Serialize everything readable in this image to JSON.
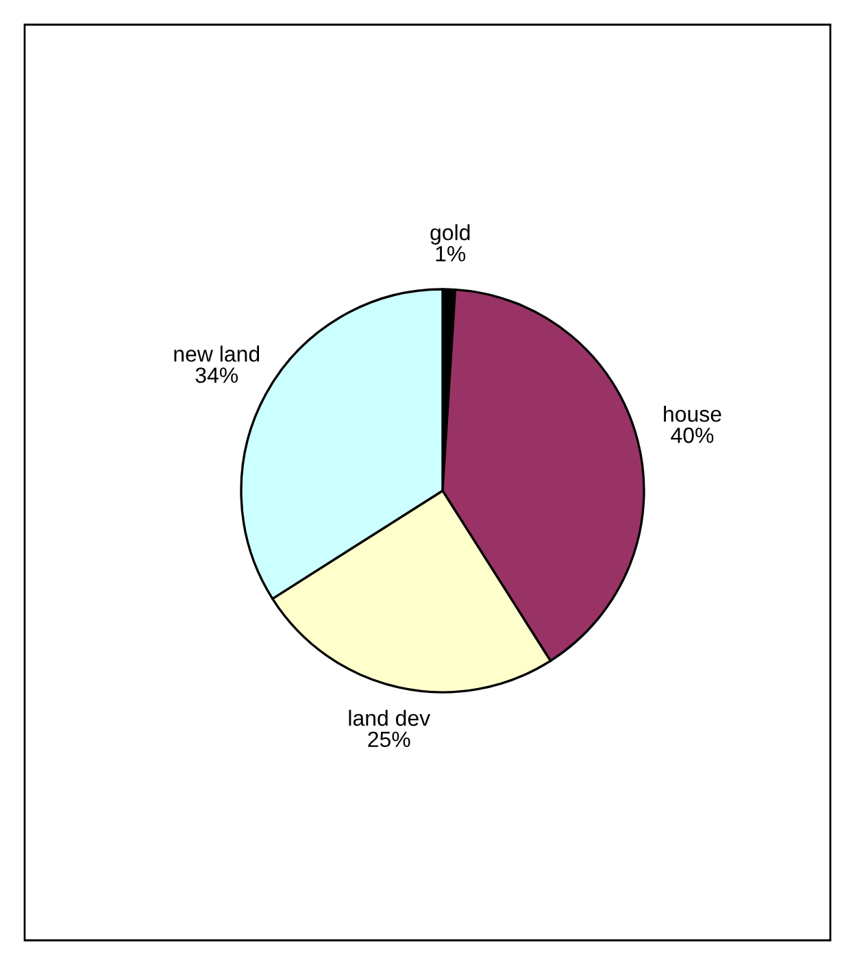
{
  "chart_data": {
    "type": "pie",
    "categories": [
      "gold",
      "house",
      "land dev",
      "new land"
    ],
    "values": [
      1,
      40,
      25,
      34
    ],
    "colors": [
      "#000000",
      "#993366",
      "#ffffcc",
      "#ccffff"
    ],
    "value_labels": [
      "1%",
      "40%",
      "25%",
      "34%"
    ],
    "legend": false
  }
}
